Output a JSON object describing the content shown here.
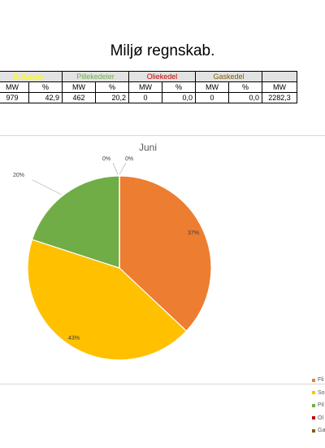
{
  "page": {
    "title": "Miljø regnskab."
  },
  "table": {
    "groups": [
      {
        "label": "Solfanger",
        "color": "#ffff00"
      },
      {
        "label": "Pillekedeler",
        "color": "#70ad47"
      },
      {
        "label": "Oliekedel",
        "color": "#c00000"
      },
      {
        "label": "Gaskedel",
        "color": "#806000"
      },
      {
        "label": "",
        "color": "#000000"
      }
    ],
    "units": [
      "MW",
      "%",
      "MW",
      "%",
      "MW",
      "%",
      "MW",
      "%",
      "MW"
    ],
    "values": [
      "979",
      "42,9",
      "462",
      "20,2",
      "0",
      "0,0",
      "0",
      "0,0",
      "2282,3"
    ]
  },
  "chart_data": {
    "type": "pie",
    "title": "Juni",
    "legend_position": "right",
    "categories": [
      "Fli",
      "So",
      "Pil",
      "Ol",
      "Ga"
    ],
    "values": [
      37,
      43,
      20,
      0,
      0
    ],
    "data_labels": [
      "37%",
      "43%",
      "20%",
      "0%",
      "0%"
    ],
    "colors": [
      "#ed7d31",
      "#ffc000",
      "#70ad47",
      "#c00000",
      "#806000"
    ]
  }
}
